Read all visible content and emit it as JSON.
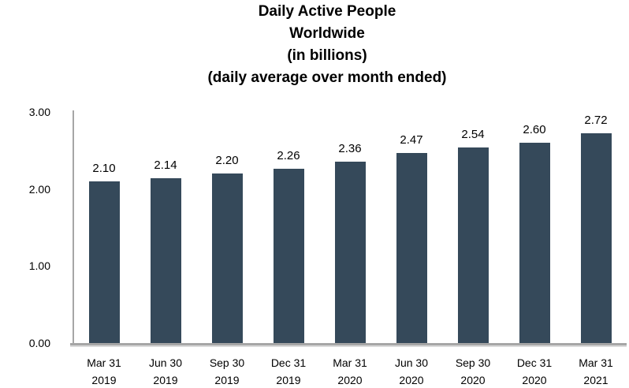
{
  "chart_data": {
    "type": "bar",
    "title": "Daily Active People Worldwide (in billions) (daily average over month ended)",
    "title_lines": [
      "Daily Active People",
      "Worldwide",
      "(in billions)",
      "(daily average over month ended)"
    ],
    "categories": [
      "Mar 31 2019",
      "Jun 30 2019",
      "Sep 30 2019",
      "Dec 31 2019",
      "Mar 31 2020",
      "Jun 30 2020",
      "Sep 30 2020",
      "Dec 31 2020",
      "Mar 31 2021"
    ],
    "category_lines": [
      [
        "Mar 31",
        "2019"
      ],
      [
        "Jun 30",
        "2019"
      ],
      [
        "Sep 30",
        "2019"
      ],
      [
        "Dec 31",
        "2019"
      ],
      [
        "Mar 31",
        "2020"
      ],
      [
        "Jun 30",
        "2020"
      ],
      [
        "Sep 30",
        "2020"
      ],
      [
        "Dec 31",
        "2020"
      ],
      [
        "Mar 31",
        "2021"
      ]
    ],
    "values": [
      2.1,
      2.14,
      2.2,
      2.26,
      2.36,
      2.47,
      2.54,
      2.6,
      2.72
    ],
    "value_labels": [
      "2.10",
      "2.14",
      "2.20",
      "2.26",
      "2.36",
      "2.47",
      "2.54",
      "2.60",
      "2.72"
    ],
    "xlabel": "",
    "ylabel": "",
    "ylim": [
      0,
      3
    ],
    "y_ticks": [
      {
        "value": 3,
        "label": "3.00"
      },
      {
        "value": 2,
        "label": "2.00"
      },
      {
        "value": 1,
        "label": "1.00"
      },
      {
        "value": 0,
        "label": "0.00"
      }
    ],
    "grid": false,
    "legend": false,
    "bar_color": "#35495A",
    "axis_color": "#A6A6A6",
    "text_color": "#000000",
    "background_color": "#FFFFFF"
  }
}
